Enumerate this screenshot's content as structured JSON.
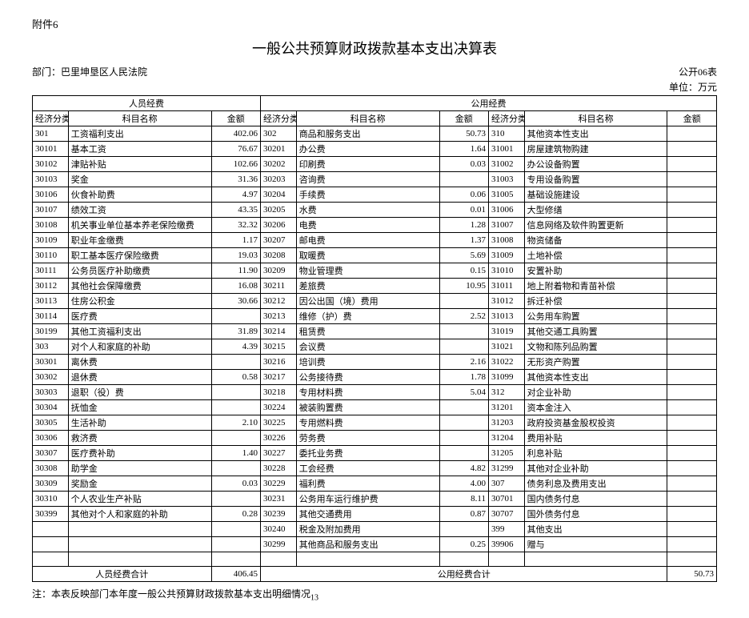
{
  "attachment": "附件6",
  "title": "一般公共预算财政拨款基本支出决算表",
  "table_code": "公开06表",
  "department_label": "部门：巴里坤垦区人民法院",
  "unit": "单位：万元",
  "section_headers": {
    "g1": "人员经费",
    "g2": "公用经费"
  },
  "col_headers": {
    "code": "经济分类科目编",
    "name": "科目名称",
    "amount": "金额"
  },
  "totals": {
    "g1_label": "人员经费合计",
    "g1_value": "406.45",
    "g2_label": "公用经费合计",
    "g2_value": "50.73"
  },
  "footnote": "注：本表反映部门本年度一般公共预算财政拨款基本支出明细情况",
  "page_no": "13",
  "rows": [
    {
      "a": "301",
      "b": "工资福利支出",
      "c": "402.06",
      "d": "302",
      "e": "商品和服务支出",
      "f": "50.73",
      "g": "310",
      "h": "其他资本性支出",
      "i": ""
    },
    {
      "a": "30101",
      "b": "基本工资",
      "c": "76.67",
      "d": "30201",
      "e": "办公费",
      "f": "1.64",
      "g": "31001",
      "h": "房屋建筑物购建",
      "i": ""
    },
    {
      "a": "30102",
      "b": "津贴补贴",
      "c": "102.66",
      "d": "30202",
      "e": "印刷费",
      "f": "0.03",
      "g": "31002",
      "h": "办公设备购置",
      "i": ""
    },
    {
      "a": "30103",
      "b": "奖金",
      "c": "31.36",
      "d": "30203",
      "e": "咨询费",
      "f": "",
      "g": "31003",
      "h": "专用设备购置",
      "i": ""
    },
    {
      "a": "30106",
      "b": "伙食补助费",
      "c": "4.97",
      "d": "30204",
      "e": "手续费",
      "f": "0.06",
      "g": "31005",
      "h": "基础设施建设",
      "i": ""
    },
    {
      "a": "30107",
      "b": "绩效工资",
      "c": "43.35",
      "d": "30205",
      "e": "水费",
      "f": "0.01",
      "g": "31006",
      "h": "大型修缮",
      "i": ""
    },
    {
      "a": "30108",
      "b": "机关事业单位基本养老保险缴费",
      "c": "32.32",
      "d": "30206",
      "e": "电费",
      "f": "1.28",
      "g": "31007",
      "h": "信息网络及软件购置更新",
      "i": ""
    },
    {
      "a": "30109",
      "b": "职业年金缴费",
      "c": "1.17",
      "d": "30207",
      "e": "邮电费",
      "f": "1.37",
      "g": "31008",
      "h": "物资储备",
      "i": ""
    },
    {
      "a": "30110",
      "b": "职工基本医疗保险缴费",
      "c": "19.03",
      "d": "30208",
      "e": "取暖费",
      "f": "5.69",
      "g": "31009",
      "h": "土地补偿",
      "i": ""
    },
    {
      "a": "30111",
      "b": "公务员医疗补助缴费",
      "c": "11.90",
      "d": "30209",
      "e": "物业管理费",
      "f": "0.15",
      "g": "31010",
      "h": "安置补助",
      "i": ""
    },
    {
      "a": "30112",
      "b": "其他社会保障缴费",
      "c": "16.08",
      "d": "30211",
      "e": "差旅费",
      "f": "10.95",
      "g": "31011",
      "h": "地上附着物和青苗补偿",
      "i": ""
    },
    {
      "a": "30113",
      "b": "住房公积金",
      "c": "30.66",
      "d": "30212",
      "e": "因公出国（境）费用",
      "f": "",
      "g": "31012",
      "h": "拆迁补偿",
      "i": ""
    },
    {
      "a": "30114",
      "b": "医疗费",
      "c": "",
      "d": "30213",
      "e": "维修（护）费",
      "f": "2.52",
      "g": "31013",
      "h": "公务用车购置",
      "i": ""
    },
    {
      "a": "30199",
      "b": "其他工资福利支出",
      "c": "31.89",
      "d": "30214",
      "e": "租赁费",
      "f": "",
      "g": "31019",
      "h": "其他交通工具购置",
      "i": ""
    },
    {
      "a": "303",
      "b": "对个人和家庭的补助",
      "c": "4.39",
      "d": "30215",
      "e": "会议费",
      "f": "",
      "g": "31021",
      "h": "文物和陈列品购置",
      "i": ""
    },
    {
      "a": "30301",
      "b": "离休费",
      "c": "",
      "d": "30216",
      "e": "培训费",
      "f": "2.16",
      "g": "31022",
      "h": "无形资产购置",
      "i": ""
    },
    {
      "a": "30302",
      "b": "退休费",
      "c": "0.58",
      "d": "30217",
      "e": "公务接待费",
      "f": "1.78",
      "g": "31099",
      "h": "其他资本性支出",
      "i": ""
    },
    {
      "a": "30303",
      "b": "退职（役）费",
      "c": "",
      "d": "30218",
      "e": "专用材料费",
      "f": "5.04",
      "g": "312",
      "h": "对企业补助",
      "i": ""
    },
    {
      "a": "30304",
      "b": "抚恤金",
      "c": "",
      "d": "30224",
      "e": "被装购置费",
      "f": "",
      "g": "31201",
      "h": "资本金注入",
      "i": ""
    },
    {
      "a": "30305",
      "b": "生活补助",
      "c": "2.10",
      "d": "30225",
      "e": "专用燃料费",
      "f": "",
      "g": "31203",
      "h": "政府投资基金股权投资",
      "i": ""
    },
    {
      "a": "30306",
      "b": "救济费",
      "c": "",
      "d": "30226",
      "e": "劳务费",
      "f": "",
      "g": "31204",
      "h": "费用补贴",
      "i": ""
    },
    {
      "a": "30307",
      "b": "医疗费补助",
      "c": "1.40",
      "d": "30227",
      "e": "委托业务费",
      "f": "",
      "g": "31205",
      "h": "利息补贴",
      "i": ""
    },
    {
      "a": "30308",
      "b": "助学金",
      "c": "",
      "d": "30228",
      "e": "工会经费",
      "f": "4.82",
      "g": "31299",
      "h": "其他对企业补助",
      "i": ""
    },
    {
      "a": "30309",
      "b": "奖励金",
      "c": "0.03",
      "d": "30229",
      "e": "福利费",
      "f": "4.00",
      "g": "307",
      "h": "债务利息及费用支出",
      "i": ""
    },
    {
      "a": "30310",
      "b": "个人农业生产补贴",
      "c": "",
      "d": "30231",
      "e": "公务用车运行维护费",
      "f": "8.11",
      "g": "30701",
      "h": "国内债务付息",
      "i": ""
    },
    {
      "a": "30399",
      "b": "其他对个人和家庭的补助",
      "c": "0.28",
      "d": "30239",
      "e": "其他交通费用",
      "f": "0.87",
      "g": "30707",
      "h": "国外债务付息",
      "i": ""
    },
    {
      "a": "",
      "b": "",
      "c": "",
      "d": "30240",
      "e": "税金及附加费用",
      "f": "",
      "g": "399",
      "h": "其他支出",
      "i": ""
    },
    {
      "a": "",
      "b": "",
      "c": "",
      "d": "30299",
      "e": "其他商品和服务支出",
      "f": "0.25",
      "g": "39906",
      "h": "赠与",
      "i": ""
    },
    {
      "a": "",
      "b": "",
      "c": "",
      "d": "",
      "e": "",
      "f": "",
      "g": "",
      "h": "",
      "i": ""
    }
  ],
  "style": {
    "background": "#ffffff",
    "border": "#000000",
    "font_body": 12,
    "font_cell": 11,
    "font_title": 18
  }
}
